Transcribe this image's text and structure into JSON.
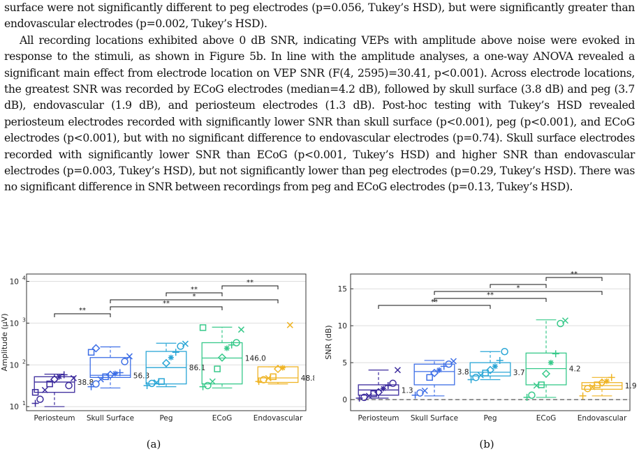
{
  "paragraphs": [
    "surface were not significantly different to peg electrodes (p=0.056, Tukey’s HSD), but were significantly greater than endovascular electrodes (p=0.002, Tukey’s HSD).",
    "All recording locations exhibited above 0 dB SNR, indicating VEPs with amplitude above noise were evoked in response to the stimuli, as shown in Figure 5b. In line with the amplitude analyses, a one-way ANOVA revealed a significant main effect from electrode location on VEP SNR (F(4, 2595)=30.41, p<0.001). Across electrode locations, the greatest SNR was recorded by ECoG electrodes (median=4.2 dB), followed by skull surface (3.8 dB) and peg (3.7 dB), endovascular (1.9 dB), and periosteum electrodes (1.3 dB). Post-hoc testing with Tukey’s HSD revealed periosteum electrodes recorded with significantly lower SNR than skull surface (p<0.001), peg (p<0.001), and ECoG electrodes (p<0.001), but with no significant difference to endovascular electrodes (p=0.74). Skull surface electrodes recorded with significantly lower SNR than ECoG (p<0.001, Tukey’s HSD) and higher SNR than endovascular electrodes (p=0.003, Tukey’s HSD), but not significantly lower than peg electrodes (p=0.29, Tukey’s HSD). There was no significant difference in SNR between recordings from peg and ECoG electrodes (p=0.13, Tukey’s HSD)."
  ],
  "captions": {
    "a": "(a)",
    "b": "(b)"
  },
  "colors": {
    "Periosteum": "#3b2a9c",
    "Skull Surface": "#3d6ee6",
    "Peg": "#2aa6d6",
    "ECoG": "#37c98a",
    "Endovascular": "#efb425"
  },
  "chart_data": [
    {
      "type": "box",
      "ylabel": "Amplitude (μV)",
      "yscale": "log",
      "ylim": [
        8,
        15000
      ],
      "yticks": [
        "10",
        "10",
        "10",
        "10"
      ],
      "yticks_exp": [
        "1",
        "2",
        "3",
        "4"
      ],
      "grid": true,
      "categories": [
        "Periosteum",
        "Skull Surface",
        "Peg",
        "ECoG",
        "Endovascular"
      ],
      "boxes": [
        {
          "q1": 22,
          "median": 38.8,
          "q3": 52,
          "whisker_low": 10,
          "whisker_high": 60
        },
        {
          "q1": 50,
          "median": 56.3,
          "q3": 150,
          "whisker_low": 28,
          "whisker_high": 270
        },
        {
          "q1": 35,
          "median": 86.1,
          "q3": 210,
          "whisker_low": 30,
          "whisker_high": 330
        },
        {
          "q1": 35,
          "median": 146.0,
          "q3": 340,
          "whisker_low": 28,
          "whisker_high": 800
        },
        {
          "q1": 38,
          "median": 48.8,
          "q3": 90,
          "whisker_low": 35,
          "whisker_high": 90,
          "outlier": 900
        }
      ],
      "median_labels": [
        "38.8",
        "56.3",
        "86.1",
        "146.0",
        "48.8"
      ],
      "points": [
        [
          12,
          15,
          25,
          35,
          45,
          52,
          58,
          32,
          48,
          22
        ],
        [
          30,
          35,
          45,
          52,
          58,
          62,
          65,
          120,
          160,
          200,
          250
        ],
        [
          32,
          36,
          38,
          40,
          110,
          150,
          200,
          280,
          320
        ],
        [
          30,
          32,
          40,
          80,
          150,
          250,
          300,
          340,
          700,
          780
        ],
        [
          40,
          44,
          48,
          52,
          80,
          85
        ]
      ],
      "significance": [
        {
          "from": 0,
          "to": 1,
          "label": "**",
          "level": 1
        },
        {
          "from": 1,
          "to": 3,
          "label": "**",
          "level": 2
        },
        {
          "from": 1,
          "to": 4,
          "label": "*",
          "level": 3
        },
        {
          "from": 2,
          "to": 3,
          "label": "**",
          "level": 4
        },
        {
          "from": 3,
          "to": 4,
          "label": "**",
          "level": 5
        }
      ]
    },
    {
      "type": "box",
      "ylabel": "SNR (dB)",
      "ylim": [
        -1.5,
        17
      ],
      "yticks": [
        "0",
        "5",
        "10",
        "15"
      ],
      "grid": true,
      "zero_line": true,
      "categories": [
        "Periosteum",
        "Skull Surface",
        "Peg",
        "ECoG",
        "Endovascular"
      ],
      "boxes": [
        {
          "q1": 0.6,
          "median": 1.3,
          "q3": 2.0,
          "whisker_low": 0.2,
          "whisker_high": 4.0
        },
        {
          "q1": 2.0,
          "median": 3.8,
          "q3": 4.8,
          "whisker_low": 0.5,
          "whisker_high": 5.3
        },
        {
          "q1": 3.2,
          "median": 3.7,
          "q3": 5.0,
          "whisker_low": 2.7,
          "whisker_high": 6.5
        },
        {
          "q1": 2.0,
          "median": 4.2,
          "q3": 6.3,
          "whisker_low": 0.3,
          "whisker_high": 10.8
        },
        {
          "q1": 1.4,
          "median": 1.9,
          "q3": 2.3,
          "whisker_low": 0.5,
          "whisker_high": 3.0
        }
      ],
      "median_labels": [
        "1.3",
        "3.8",
        "3.7",
        "4.2",
        "1.9"
      ],
      "points": [
        [
          0.2,
          0.3,
          0.5,
          0.8,
          1.0,
          1.5,
          1.9,
          2.2,
          4.0
        ],
        [
          0.6,
          0.9,
          1.2,
          3.0,
          3.6,
          4.0,
          4.5,
          4.8,
          5.2
        ],
        [
          2.7,
          3.0,
          3.3,
          3.6,
          4.0,
          4.5,
          5.3,
          6.5
        ],
        [
          0.3,
          0.6,
          1.9,
          2.0,
          3.5,
          5.0,
          6.2,
          10.3,
          10.7
        ],
        [
          0.5,
          1.5,
          1.7,
          2.0,
          2.3,
          2.5,
          3.0
        ]
      ],
      "significance": [
        {
          "from": 0,
          "to": 2,
          "label": "**",
          "level": 1
        },
        {
          "from": 1,
          "to": 3,
          "label": "**",
          "level": 2
        },
        {
          "from": 1,
          "to": 4,
          "label": "*",
          "level": 3
        },
        {
          "from": 2,
          "to": 3,
          "label": "",
          "level": 4
        },
        {
          "from": 3,
          "to": 4,
          "label": "**",
          "level": 5
        }
      ]
    }
  ]
}
